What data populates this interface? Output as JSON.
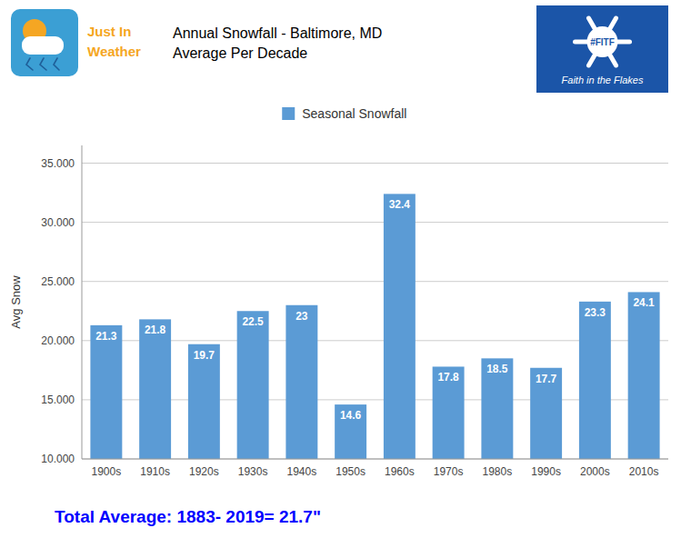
{
  "chart_data": {
    "type": "bar",
    "title": "Annual Snowfall - Baltimore, MD",
    "subtitle": "Average Per Decade",
    "y_label": "Avg Snow",
    "categories": [
      "1900s",
      "1910s",
      "1920s",
      "1930s",
      "1940s",
      "1950s",
      "1960s",
      "1970s",
      "1980s",
      "1990s",
      "2000s",
      "2010s"
    ],
    "series": [
      {
        "name": "Seasonal Snowfall",
        "color": "#5B9BD5",
        "values": [
          21.3,
          21.8,
          19.7,
          22.5,
          23.0,
          14.6,
          32.4,
          17.8,
          18.5,
          17.7,
          23.3,
          24.1
        ]
      }
    ],
    "ylim": [
      10.0,
      36.5
    ],
    "yticks": [
      {
        "value": 10.0,
        "label": "10.000"
      },
      {
        "value": 15.0,
        "label": "15.000"
      },
      {
        "value": 20.0,
        "label": "20.000"
      },
      {
        "value": 25.0,
        "label": "25.000"
      },
      {
        "value": 30.0,
        "label": "30.000"
      },
      {
        "value": 35.0,
        "label": "35.000"
      }
    ],
    "grid": true,
    "legend": "top",
    "data_labels": true,
    "annotations": [
      "Just In",
      "Weather",
      "#FITF",
      "Faith in the Flakes",
      "Total Average: 1883- 2019= 21.7\""
    ]
  }
}
